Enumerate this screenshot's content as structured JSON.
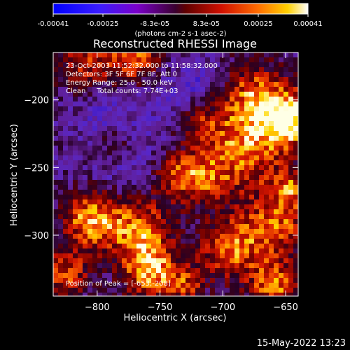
{
  "colorbar": {
    "tick_labels": [
      "-0.00041",
      "-0.00025",
      "-8.3e-05",
      "8.3e-05",
      "0.00025",
      "0.00041"
    ],
    "tick_values": [
      -0.00041,
      -0.00025,
      -8.3e-05,
      8.3e-05,
      0.00025,
      0.00041
    ],
    "unit_label": "(photons cm-2 s-1 asec-2)",
    "range": [
      -0.00041,
      0.00041
    ]
  },
  "chart_data": {
    "type": "heatmap",
    "title": "Reconstructed RHESSI Image",
    "xlabel": "Heliocentric X (arcsec)",
    "ylabel": "Heliocentric Y (arcsec)",
    "xlim": [
      -835,
      -640
    ],
    "ylim": [
      -345,
      -165
    ],
    "x_ticks": [
      -800,
      -750,
      -700,
      -650
    ],
    "x_tick_labels": [
      "−800",
      "−750",
      "−700",
      "−650"
    ],
    "y_ticks": [
      -200,
      -250,
      -300
    ],
    "y_tick_labels": [
      "−200",
      "−250",
      "−300"
    ],
    "colormap": "rainbow-dark (blue-purple-red-orange-yellow-white)",
    "annotations": [
      "23-Oct-2003 11:52:32.000 to 11:58:32.000",
      "Detectors: 3F 5F 6F 7F 8F, Att 0",
      "Energy Range: 25.0 - 50.0 keV",
      "Clean     Total counts: 7.74E+03",
      "Position of Peak = [-653,-208]"
    ],
    "peak": {
      "x": -653,
      "y": -208
    }
  },
  "footer": {
    "timestamp": "15-May-2022 13:23"
  }
}
